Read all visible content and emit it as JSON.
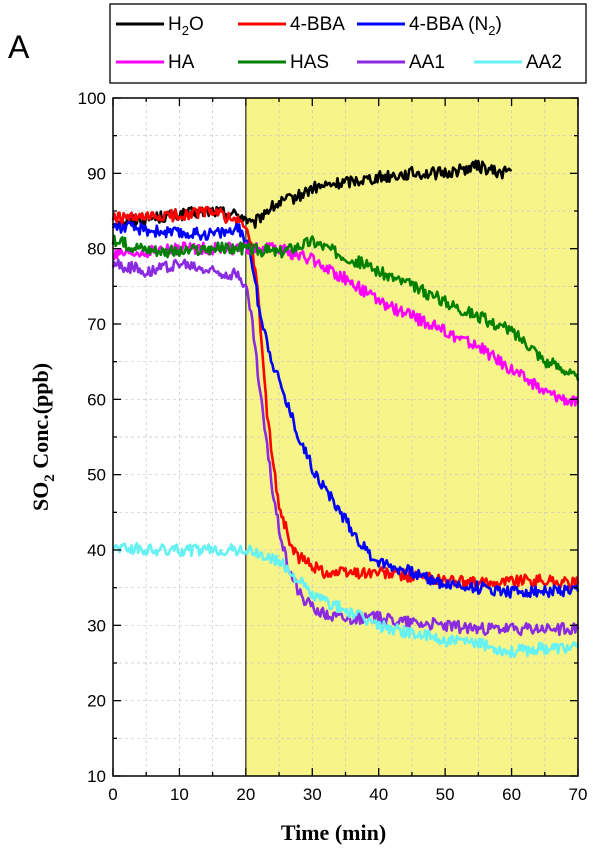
{
  "chart_data": {
    "type": "line",
    "panel_label": "A",
    "xlabel": "Time (min)",
    "ylabel_parts": {
      "pre": "SO",
      "sub": "2",
      "post": " Conc.(ppb)"
    },
    "xlim": [
      0,
      70
    ],
    "ylim": [
      10,
      100
    ],
    "x_ticks": [
      "0",
      "10",
      "20",
      "30",
      "40",
      "50",
      "60",
      "70"
    ],
    "y_ticks": [
      "10",
      "20",
      "30",
      "40",
      "50",
      "60",
      "70",
      "80",
      "90",
      "100"
    ],
    "grid": true,
    "highlight_region": {
      "x_start": 20,
      "x_end": 70,
      "color": "#f7f48a"
    },
    "legend_position": "top",
    "series": [
      {
        "name": "H2O",
        "name_parts": {
          "pre": "H",
          "sub": "2",
          "post": "O"
        },
        "color": "#000000",
        "x": [
          0,
          5,
          10,
          15,
          19,
          20,
          21,
          23,
          25,
          28,
          30,
          33,
          36,
          40,
          45,
          50,
          55,
          58,
          60
        ],
        "y": [
          83.5,
          84,
          84.5,
          85,
          84.5,
          84,
          83,
          85,
          86,
          87,
          88,
          88.5,
          89,
          89.5,
          90,
          90,
          91,
          90,
          90.5
        ]
      },
      {
        "name": "4-BBA",
        "color": "#ff0000",
        "x": [
          0,
          5,
          10,
          15,
          19,
          20,
          21,
          22,
          23,
          24,
          25,
          26,
          27,
          28,
          29,
          30,
          32,
          35,
          40,
          45,
          50,
          55,
          60,
          65,
          70
        ],
        "y": [
          84,
          84,
          84.5,
          85,
          83.5,
          83,
          80,
          72,
          60,
          52,
          46,
          43,
          40,
          39,
          38.5,
          38,
          37,
          37,
          37,
          36.5,
          36,
          35.5,
          36,
          36,
          35.5
        ]
      },
      {
        "name": "4-BBA (N2)",
        "name_parts": {
          "pre": "4-BBA (N",
          "sub": "2",
          "post": ")"
        },
        "color": "#0000ff",
        "x": [
          0,
          5,
          10,
          15,
          19,
          20,
          21,
          22,
          24,
          26,
          28,
          30,
          32,
          35,
          38,
          40,
          45,
          50,
          55,
          60,
          65,
          70
        ],
        "y": [
          83,
          82.5,
          82,
          82,
          82.5,
          81,
          78,
          72,
          65,
          60,
          55,
          51,
          48,
          44,
          40,
          38.5,
          37,
          35.5,
          35,
          34.5,
          34.5,
          34.5
        ]
      },
      {
        "name": "HA",
        "color": "#ff00ff",
        "x": [
          0,
          5,
          10,
          15,
          20,
          25,
          30,
          35,
          40,
          45,
          50,
          55,
          60,
          65,
          70
        ],
        "y": [
          79,
          79.5,
          80,
          80,
          80,
          80,
          78.5,
          76,
          73,
          71,
          69,
          67,
          64,
          61,
          59.5
        ]
      },
      {
        "name": "HAS",
        "color": "#008000",
        "x": [
          0,
          5,
          10,
          15,
          20,
          25,
          30,
          35,
          40,
          45,
          50,
          55,
          60,
          63,
          65,
          68,
          70
        ],
        "y": [
          81,
          80,
          79.5,
          80,
          80,
          79.5,
          81,
          79,
          77,
          75,
          73,
          71,
          69,
          67,
          65,
          64,
          62.5
        ]
      },
      {
        "name": "AA1",
        "color": "#8a2be2",
        "x": [
          0,
          5,
          10,
          15,
          19,
          20,
          21,
          22,
          23,
          24,
          25,
          26,
          27,
          28,
          29,
          30,
          32,
          35,
          40,
          45,
          50,
          55,
          60,
          65,
          70
        ],
        "y": [
          78,
          77,
          78,
          77,
          76.5,
          75,
          70,
          62,
          55,
          48,
          43,
          39,
          36.5,
          34.5,
          33,
          32.5,
          31.5,
          31,
          31,
          30.5,
          30,
          29.5,
          29.5,
          29.5,
          29.5
        ]
      },
      {
        "name": "AA2",
        "color": "#66f2f2",
        "x": [
          0,
          5,
          10,
          15,
          20,
          25,
          28,
          30,
          35,
          40,
          45,
          50,
          55,
          60,
          65,
          70
        ],
        "y": [
          40.5,
          40,
          40,
          40,
          40,
          38.5,
          36,
          34,
          32,
          30,
          29,
          28,
          27.5,
          26.5,
          27,
          27
        ]
      }
    ]
  }
}
